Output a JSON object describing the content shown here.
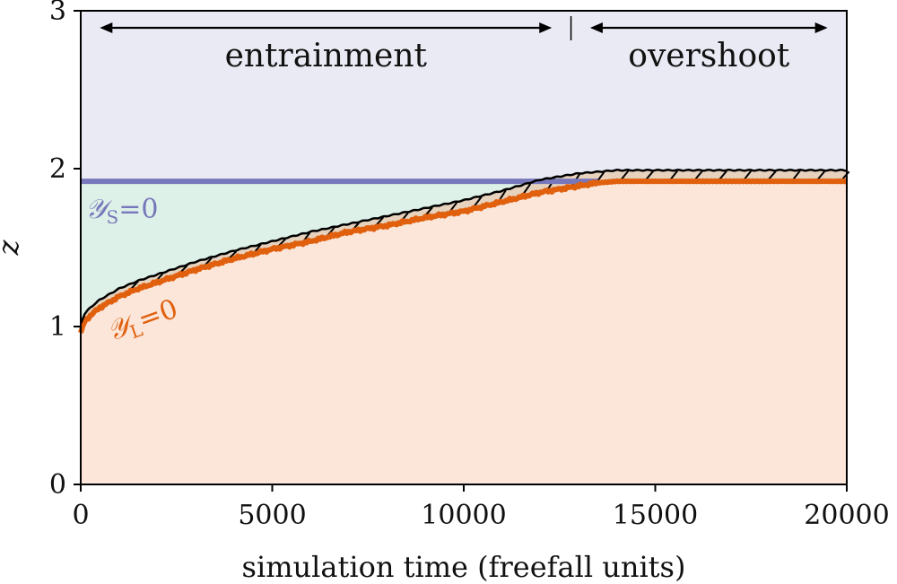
{
  "chart_data": {
    "type": "area",
    "xlabel": "simulation time (freefall units)",
    "ylabel": "z",
    "xlim": [
      0,
      20000
    ],
    "ylim": [
      0,
      3
    ],
    "xticks": [
      "0",
      "5000",
      "10000",
      "15000",
      "20000"
    ],
    "yticks": [
      "0",
      "1",
      "2",
      "3"
    ],
    "grid": false,
    "legend": "none",
    "annotations": {
      "entrainment": "entrainment",
      "overshoot": "overshoot",
      "entrainment_range": [
        500,
        12300
      ],
      "overshoot_range": [
        13300,
        19500
      ],
      "divider_x": 12800
    },
    "labels": {
      "ys": {
        "main": "𝒴",
        "sub": "S",
        "eq": "=0"
      },
      "yl": {
        "main": "𝒴",
        "sub": "L",
        "eq": "=0"
      }
    },
    "colors": {
      "top_region": "#eaeaf4",
      "middle_region": "#def1e8",
      "bottom_region": "#fbe6d9",
      "band_region": "#e6d2bd",
      "ys_line": "#7777bb",
      "yl_line": "#e0600e",
      "upper_curve": "#000000"
    },
    "series": [
      {
        "name": "𝒴S=0",
        "x": [
          0,
          20000
        ],
        "y": [
          1.92,
          1.92
        ]
      },
      {
        "name": "𝒴L=0",
        "x": [
          0,
          100,
          250,
          500,
          1000,
          1500,
          2000,
          3000,
          4000,
          5000,
          6000,
          7000,
          8000,
          9000,
          10000,
          11000,
          12000,
          12500,
          13000,
          13500,
          14000,
          15000,
          17000,
          20000
        ],
        "y": [
          0.96,
          1.03,
          1.07,
          1.12,
          1.19,
          1.24,
          1.28,
          1.36,
          1.43,
          1.49,
          1.54,
          1.6,
          1.64,
          1.69,
          1.73,
          1.79,
          1.85,
          1.87,
          1.89,
          1.91,
          1.92,
          1.92,
          1.92,
          1.92
        ]
      },
      {
        "name": "",
        "x": [
          0,
          100,
          250,
          500,
          1000,
          1500,
          2000,
          3000,
          4000,
          5000,
          6000,
          7000,
          8000,
          9000,
          10000,
          11000,
          12000,
          12500,
          13000,
          13500,
          14000,
          15000,
          17000,
          20000
        ],
        "y": [
          1.02,
          1.08,
          1.12,
          1.17,
          1.24,
          1.29,
          1.33,
          1.41,
          1.48,
          1.54,
          1.6,
          1.65,
          1.7,
          1.75,
          1.8,
          1.86,
          1.93,
          1.95,
          1.97,
          1.98,
          1.99,
          1.99,
          1.99,
          1.99
        ]
      }
    ]
  }
}
